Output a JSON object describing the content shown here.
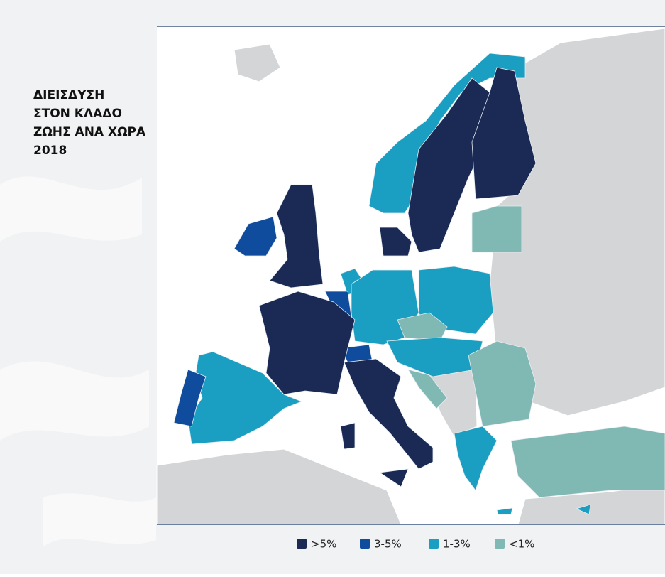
{
  "title": [
    "ΔΙΕΙΣΔΥΣΗ",
    "ΣΤΟΝ ΚΛΑΔΟ",
    "ΖΩΗΣ ΑΝΑ ΧΩΡΑ",
    "2018"
  ],
  "legend": [
    {
      "label": ">5%",
      "color": "#1b2a55"
    },
    {
      "label": "3-5%",
      "color": "#0f4c9e"
    },
    {
      "label": "1-3%",
      "color": "#1a9fc2"
    },
    {
      "label": "<1%",
      "color": "#80b8b3"
    }
  ]
}
